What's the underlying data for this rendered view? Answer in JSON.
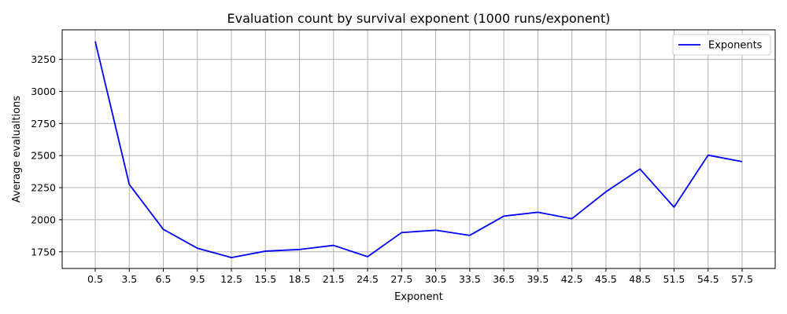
{
  "chart_data": {
    "type": "line",
    "title": "Evaluation count by survival exponent (1000 runs/exponent)",
    "xlabel": "Exponent",
    "ylabel": "Average evalualtions",
    "categories": [
      "0.5",
      "3.5",
      "6.5",
      "9.5",
      "12.5",
      "15.5",
      "18.5",
      "21.5",
      "24.5",
      "27.5",
      "30.5",
      "33.5",
      "36.5",
      "39.5",
      "42.5",
      "45.5",
      "48.5",
      "51.5",
      "54.5",
      "57.5"
    ],
    "series": [
      {
        "name": "Exponents",
        "color": "#0000ff",
        "values": [
          3390,
          2275,
          1925,
          1778,
          1705,
          1755,
          1768,
          1800,
          1712,
          1900,
          1918,
          1878,
          2028,
          2058,
          2008,
          2218,
          2395,
          2098,
          2503,
          2453
        ]
      }
    ],
    "yticks": [
      1750,
      2000,
      2250,
      2500,
      2750,
      3000,
      3250
    ],
    "ylim": [
      1620,
      3480
    ],
    "grid": true,
    "legend_position": "top-right"
  }
}
